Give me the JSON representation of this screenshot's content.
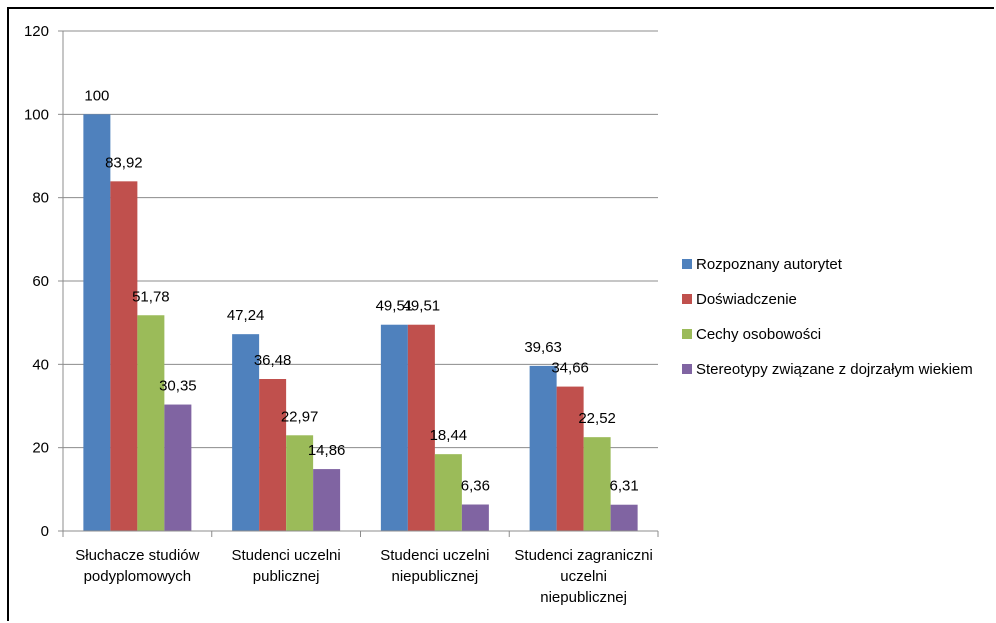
{
  "chart_data": {
    "type": "bar",
    "title": "",
    "xlabel": "",
    "ylabel": "",
    "ylim": [
      0,
      120
    ],
    "yticks": [
      0,
      20,
      40,
      60,
      80,
      100,
      120
    ],
    "grid": true,
    "legend_position": "right",
    "categories": [
      [
        "Słuchacze studiów",
        "podyplomowych"
      ],
      [
        "Studenci uczelni",
        "publicznej"
      ],
      [
        "Studenci uczelni",
        "niepublicznej"
      ],
      [
        "Studenci zagraniczni",
        "uczelni",
        "niepublicznej"
      ]
    ],
    "series": [
      {
        "name": "Rozpoznany autorytet",
        "color": "#4F81BD",
        "values": [
          100,
          47.24,
          49.51,
          39.63
        ],
        "labels": [
          "100",
          "47,24",
          "49,51",
          "39,63"
        ]
      },
      {
        "name": "Doświadczenie",
        "color": "#C0504D",
        "values": [
          83.92,
          36.48,
          49.51,
          34.66
        ],
        "labels": [
          "83,92",
          "36,48",
          "49,51",
          "34,66"
        ]
      },
      {
        "name": "Cechy osobowości",
        "color": "#9BBB59",
        "values": [
          51.78,
          22.97,
          18.44,
          22.52
        ],
        "labels": [
          "51,78",
          "22,97",
          "18,44",
          "22,52"
        ]
      },
      {
        "name": "Stereotypy związane z dojrzałym wiekiem",
        "color": "#8064A2",
        "values": [
          30.35,
          14.86,
          6.36,
          6.31
        ],
        "labels": [
          "30,35",
          "14,86",
          "6,36",
          "6,31"
        ]
      }
    ]
  }
}
